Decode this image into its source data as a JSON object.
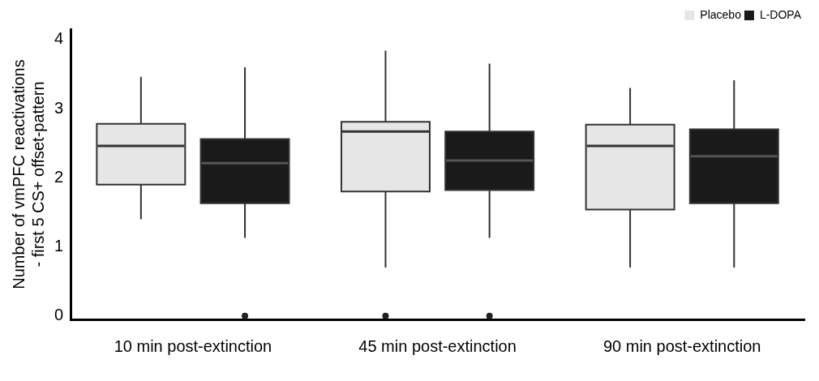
{
  "chart_data": {
    "type": "box",
    "ylabel": "Number of vmPFC reactivations\n- first 5 CS+ offset-pattern",
    "categories": [
      "10 min post-extinction",
      "45 min post-extinction",
      "90 min post-extinction"
    ],
    "series": [
      {
        "name": "Placebo",
        "color": "#e6e6e6",
        "boxes": [
          {
            "low": 1.4,
            "q1": 1.9,
            "median": 2.46,
            "q3": 2.78,
            "high": 3.46
          },
          {
            "low": 0.7,
            "q1": 1.8,
            "median": 2.67,
            "q3": 2.81,
            "high": 3.84,
            "outliers": [
              0
            ]
          },
          {
            "low": 0.7,
            "q1": 1.54,
            "median": 2.46,
            "q3": 2.77,
            "high": 3.3
          }
        ]
      },
      {
        "name": "L-DOPA",
        "color": "#1a1a1a",
        "boxes": [
          {
            "low": 1.13,
            "q1": 1.63,
            "median": 2.21,
            "q3": 2.56,
            "high": 3.6,
            "outliers": [
              0
            ]
          },
          {
            "low": 1.13,
            "q1": 1.82,
            "median": 2.25,
            "q3": 2.67,
            "high": 3.65,
            "outliers": [
              0
            ]
          },
          {
            "low": 0.7,
            "q1": 1.63,
            "median": 2.31,
            "q3": 2.7,
            "high": 3.41
          }
        ]
      }
    ],
    "ylim": [
      -0.05,
      4.15
    ],
    "yticks": [
      0,
      1,
      2,
      3,
      4
    ],
    "grid": false,
    "legend": "top right"
  }
}
